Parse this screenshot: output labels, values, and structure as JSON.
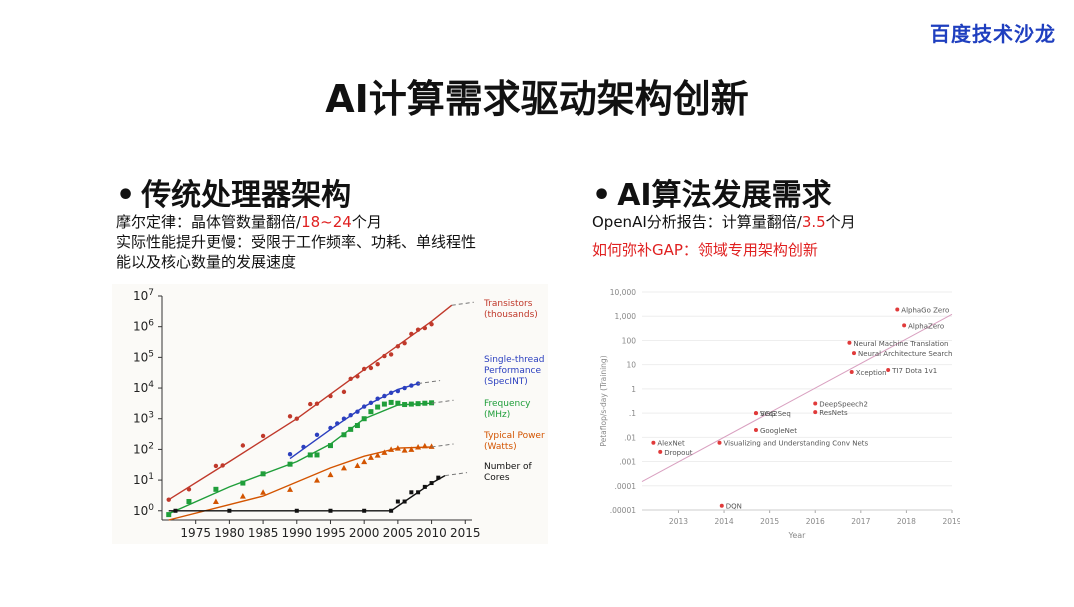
{
  "logo": "百度技术沙龙",
  "title": "AI计算需求驱动架构创新",
  "left": {
    "heading": "传统处理器架构",
    "line1_prefix": "摩尔定律：晶体管数量翻倍/",
    "line1_highlight": "18~24",
    "line1_suffix": "个月",
    "line2": "实际性能提升更慢：受限于工作频率、功耗、单线程性",
    "line3": "能以及核心数量的发展速度"
  },
  "right": {
    "heading": "AI算法发展需求",
    "line1_prefix": "OpenAI分析报告：计算量翻倍/",
    "line1_highlight": "3.5",
    "line1_suffix": "个月",
    "line2": "如何弥补GAP：领域专用架构创新"
  },
  "chart_data": [
    {
      "type": "scatter",
      "title": "",
      "xlabel": "",
      "ylabel": "",
      "log_y": true,
      "xlim": [
        1970,
        2016
      ],
      "ylim": [
        0.5,
        10000000
      ],
      "x_ticks": [
        "1975",
        "1980",
        "1985",
        "1990",
        "1995",
        "2000",
        "2005",
        "2010",
        "2015"
      ],
      "y_ticks": [
        "10^0",
        "10^1",
        "10^2",
        "10^3",
        "10^4",
        "10^5",
        "10^6",
        "10^7"
      ],
      "series": [
        {
          "name": "Transistors (thousands)",
          "color": "#c0392b",
          "label_lines": [
            "Transistors",
            "(thousands)"
          ],
          "trend": [
            [
              1971,
              2.3
            ],
            [
              1980,
              40
            ],
            [
              1990,
              1000
            ],
            [
              2000,
              40000
            ],
            [
              2010,
              1500000
            ],
            [
              2013,
              5000000
            ]
          ],
          "points": [
            [
              1971,
              2.3
            ],
            [
              1974,
              5
            ],
            [
              1978,
              29
            ],
            [
              1979,
              30
            ],
            [
              1982,
              134
            ],
            [
              1985,
              275
            ],
            [
              1989,
              1200
            ],
            [
              1990,
              1000
            ],
            [
              1992,
              3000
            ],
            [
              1993,
              3100
            ],
            [
              1995,
              5500
            ],
            [
              1997,
              7500
            ],
            [
              1998,
              20000
            ],
            [
              1999,
              24000
            ],
            [
              2000,
              42000
            ],
            [
              2001,
              45000
            ],
            [
              2002,
              60000
            ],
            [
              2003,
              110000
            ],
            [
              2004,
              125000
            ],
            [
              2005,
              230000
            ],
            [
              2006,
              290000
            ],
            [
              2007,
              580000
            ],
            [
              2008,
              800000
            ],
            [
              2009,
              900000
            ],
            [
              2010,
              1200000
            ]
          ]
        },
        {
          "name": "Single-thread Performance (SpecINT)",
          "color": "#2b3fbf",
          "label_lines": [
            "Single-thread",
            "Performance",
            "(SpecINT)"
          ],
          "trend": [
            [
              1989,
              50
            ],
            [
              1995,
              450
            ],
            [
              2000,
              2500
            ],
            [
              2005,
              9000
            ],
            [
              2008,
              14000
            ]
          ],
          "points": [
            [
              1989,
              70
            ],
            [
              1991,
              120
            ],
            [
              1993,
              300
            ],
            [
              1995,
              500
            ],
            [
              1996,
              700
            ],
            [
              1997,
              1000
            ],
            [
              1998,
              1300
            ],
            [
              1999,
              1700
            ],
            [
              2000,
              2500
            ],
            [
              2001,
              3300
            ],
            [
              2002,
              4500
            ],
            [
              2003,
              5500
            ],
            [
              2004,
              7000
            ],
            [
              2005,
              8000
            ],
            [
              2006,
              10000
            ],
            [
              2007,
              12000
            ],
            [
              2008,
              14000
            ]
          ]
        },
        {
          "name": "Frequency (MHz)",
          "color": "#1f9e3a",
          "label_lines": [
            "Frequency",
            "(MHz)"
          ],
          "trend": [
            [
              1971,
              0.8
            ],
            [
              1980,
              6
            ],
            [
              1990,
              40
            ],
            [
              1995,
              150
            ],
            [
              2000,
              1000
            ],
            [
              2005,
              2800
            ],
            [
              2010,
              3200
            ]
          ],
          "points": [
            [
              1971,
              0.75
            ],
            [
              1974,
              2
            ],
            [
              1978,
              5
            ],
            [
              1982,
              8
            ],
            [
              1985,
              16
            ],
            [
              1989,
              33
            ],
            [
              1992,
              66
            ],
            [
              1993,
              66
            ],
            [
              1995,
              133
            ],
            [
              1997,
              300
            ],
            [
              1998,
              450
            ],
            [
              1999,
              600
            ],
            [
              2000,
              1000
            ],
            [
              2001,
              1700
            ],
            [
              2002,
              2400
            ],
            [
              2003,
              3000
            ],
            [
              2004,
              3400
            ],
            [
              2005,
              3200
            ],
            [
              2006,
              2900
            ],
            [
              2007,
              3000
            ],
            [
              2008,
              3100
            ],
            [
              2009,
              3200
            ],
            [
              2010,
              3300
            ]
          ]
        },
        {
          "name": "Typical Power (Watts)",
          "color": "#d35400",
          "label_lines": [
            "Typical Power",
            "(Watts)"
          ],
          "trend": [
            [
              1971,
              0.5
            ],
            [
              1985,
              3
            ],
            [
              1995,
              25
            ],
            [
              2000,
              60
            ],
            [
              2005,
              110
            ],
            [
              2010,
              120
            ]
          ],
          "points": [
            [
              1978,
              2
            ],
            [
              1982,
              3
            ],
            [
              1985,
              4
            ],
            [
              1989,
              5
            ],
            [
              1993,
              10
            ],
            [
              1995,
              15
            ],
            [
              1997,
              25
            ],
            [
              1999,
              30
            ],
            [
              2000,
              40
            ],
            [
              2001,
              55
            ],
            [
              2002,
              65
            ],
            [
              2003,
              80
            ],
            [
              2004,
              100
            ],
            [
              2005,
              110
            ],
            [
              2006,
              95
            ],
            [
              2007,
              100
            ],
            [
              2008,
              120
            ],
            [
              2009,
              130
            ],
            [
              2010,
              125
            ]
          ]
        },
        {
          "name": "Number of Cores",
          "color": "#111111",
          "label_lines": [
            "Number of",
            "Cores"
          ],
          "trend": [
            [
              1971,
              1
            ],
            [
              2004,
              1
            ],
            [
              2006,
              2
            ],
            [
              2008,
              4
            ],
            [
              2010,
              8
            ],
            [
              2012,
              14
            ]
          ],
          "points": [
            [
              1972,
              1
            ],
            [
              1980,
              1
            ],
            [
              1990,
              1
            ],
            [
              1995,
              1
            ],
            [
              2000,
              1
            ],
            [
              2004,
              1
            ],
            [
              2005,
              2
            ],
            [
              2006,
              2
            ],
            [
              2007,
              4
            ],
            [
              2008,
              4
            ],
            [
              2009,
              6
            ],
            [
              2010,
              8
            ],
            [
              2011,
              12
            ]
          ]
        }
      ]
    },
    {
      "type": "scatter",
      "title": "",
      "xlabel": "Year",
      "ylabel": "Petaflop/s-day (Training)",
      "log_y": true,
      "xlim": [
        2012.2,
        2019
      ],
      "ylim": [
        1e-05,
        10000
      ],
      "x_ticks": [
        "2013",
        "2014",
        "2015",
        "2016",
        "2017",
        "2018",
        "2019"
      ],
      "y_ticks": [
        "10,000",
        "1,000",
        "100",
        "10",
        "1",
        ".1",
        ".01",
        ".001",
        ".0001",
        ".00001"
      ],
      "points": [
        {
          "label": "AlexNet",
          "x": 2012.45,
          "y": 0.006
        },
        {
          "label": "Dropout",
          "x": 2012.6,
          "y": 0.0025
        },
        {
          "label": "DQN",
          "x": 2013.95,
          "y": 1.5e-05
        },
        {
          "label": "Visualizing and Understanding Conv Nets",
          "x": 2013.9,
          "y": 0.006
        },
        {
          "label": "VGG",
          "x": 2014.7,
          "y": 0.1
        },
        {
          "label": "Seq2Seq",
          "x": 2014.7,
          "y": 0.1
        },
        {
          "label": "GoogleNet",
          "x": 2014.7,
          "y": 0.02
        },
        {
          "label": "DeepSpeech2",
          "x": 2016.0,
          "y": 0.25
        },
        {
          "label": "ResNets",
          "x": 2016.0,
          "y": 0.11
        },
        {
          "label": "Neural Machine Translation",
          "x": 2016.75,
          "y": 80
        },
        {
          "label": "Neural Architecture Search",
          "x": 2016.85,
          "y": 30
        },
        {
          "label": "Xception",
          "x": 2016.8,
          "y": 5
        },
        {
          "label": "TI7 Dota 1v1",
          "x": 2017.6,
          "y": 6
        },
        {
          "label": "AlphaGo Zero",
          "x": 2017.8,
          "y": 1900
        },
        {
          "label": "AlphaZero",
          "x": 2017.95,
          "y": 420
        }
      ],
      "trend": [
        [
          2012.2,
          0.00015
        ],
        [
          2019,
          1200
        ]
      ]
    }
  ]
}
